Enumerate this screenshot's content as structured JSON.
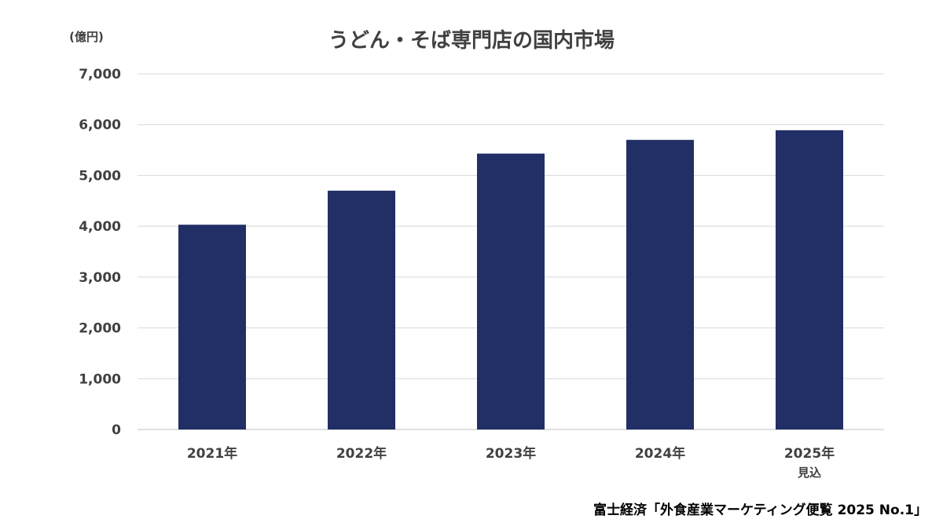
{
  "chart_data": {
    "type": "bar",
    "title": "うどん・そば専門店の国内市場",
    "unit_label": "(億円)",
    "categories": [
      "2021年",
      "2022年",
      "2023年",
      "2024年",
      "2025年"
    ],
    "category_sublabels": [
      "",
      "",
      "",
      "",
      "見込"
    ],
    "values": [
      4030,
      4700,
      5430,
      5700,
      5890
    ],
    "ylim": [
      0,
      7000
    ],
    "yticks": [
      "0",
      "1,000",
      "2,000",
      "3,000",
      "4,000",
      "5,000",
      "6,000",
      "7,000"
    ],
    "ytick_values": [
      0,
      1000,
      2000,
      3000,
      4000,
      5000,
      6000,
      7000
    ],
    "grid": true,
    "bar_color": "#212F66",
    "source": "富士経済「外食産業マーケティング便覧 2025 No.1」"
  }
}
